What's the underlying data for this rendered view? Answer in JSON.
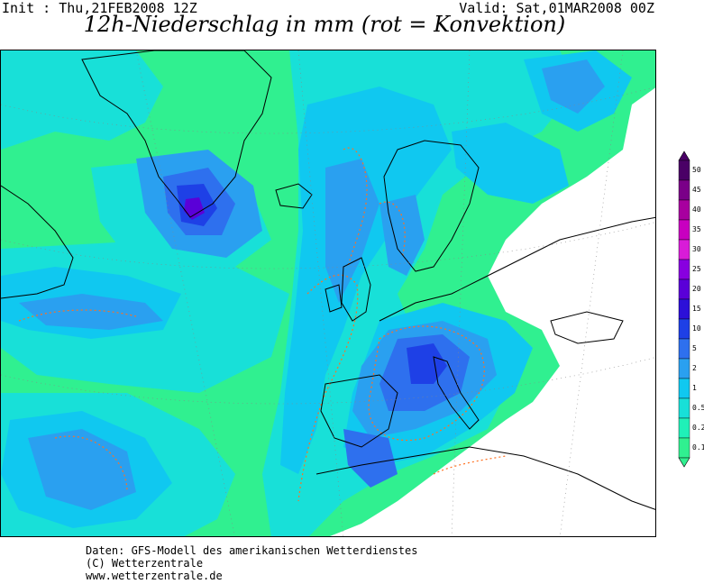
{
  "header": {
    "init": "Init : Thu,21FEB2008 12Z",
    "valid": "Valid: Sat,01MAR2008 00Z",
    "title": "12h-Niederschlag in mm (rot = Konvektion)"
  },
  "legend": {
    "levels": [
      "50",
      "45",
      "40",
      "35",
      "30",
      "25",
      "20",
      "15",
      "10",
      "5",
      "2",
      "1",
      "0.5",
      "0.2",
      "0.1"
    ],
    "colors": [
      "#4a0066",
      "#7a0088",
      "#a8009f",
      "#c800c0",
      "#d81cd8",
      "#8800e0",
      "#5a00d8",
      "#2c10d8",
      "#1e40e6",
      "#2e70ee",
      "#2aa0f0",
      "#10c8f0",
      "#18e0d8",
      "#20f0b8",
      "#30f090"
    ]
  },
  "footer": {
    "line1": "Daten: GFS-Modell des amerikanischen Wetterdienstes",
    "line2": "(C) Wetterzentrale",
    "line3": "www.wetterzentrale.de"
  },
  "map_colors": {
    "trace": "#30f090",
    "light": "#18e0d8",
    "moderate": "#10c8f0",
    "heavy": "#2aa0f0",
    "strong": "#2e70ee",
    "intense": "#1e40e6",
    "extreme": "#5a00d8",
    "convection": "#ff7020",
    "coastline": "#000000"
  }
}
